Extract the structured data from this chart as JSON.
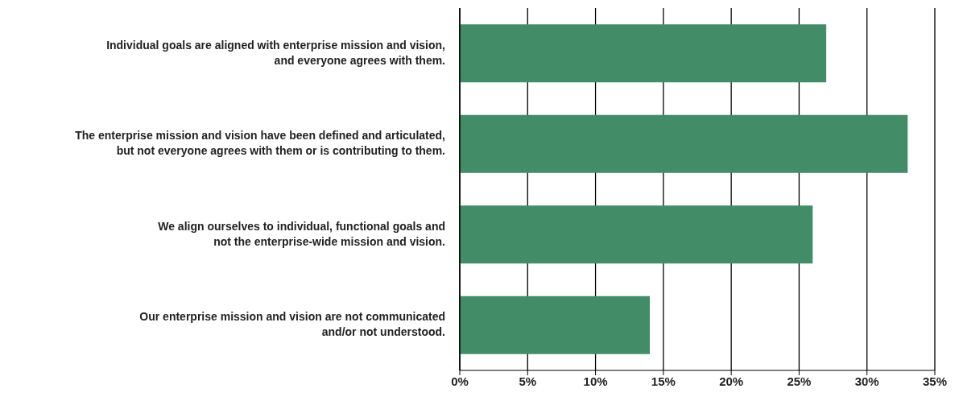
{
  "chart_data": {
    "type": "bar",
    "orientation": "horizontal",
    "categories": [
      "Individual goals are aligned with enterprise mission and vision,\nand everyone agrees with them.",
      "The enterprise mission and vision have been defined and articulated,\nbut not everyone agrees with them or is contributing to them.",
      "We align ourselves to individual, functional goals and\nnot the enterprise-wide mission and vision.",
      "Our enterprise mission and vision are not communicated\nand/or not understood."
    ],
    "values": [
      27,
      33,
      26,
      14
    ],
    "color": "#428d68",
    "xlim": [
      0,
      35
    ],
    "xticks": [
      {
        "value": 0,
        "label": "0%"
      },
      {
        "value": 5,
        "label": "5%"
      },
      {
        "value": 10,
        "label": "10%"
      },
      {
        "value": 15,
        "label": "15%"
      },
      {
        "value": 20,
        "label": "20%"
      },
      {
        "value": 25,
        "label": "25%"
      },
      {
        "value": 30,
        "label": "30%"
      },
      {
        "value": 35,
        "label": "35%"
      }
    ],
    "grid": "x"
  }
}
